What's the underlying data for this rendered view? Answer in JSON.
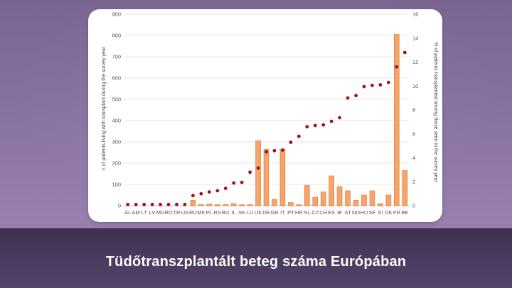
{
  "caption": "Tüdőtranszplantált beteg száma Európában",
  "chart_data": {
    "type": "bar",
    "categories": [
      "AL",
      "AM",
      "LT",
      "LV",
      "MD",
      "RO",
      "TR",
      "UA",
      "RU",
      "MK",
      "PL",
      "RS",
      "BG",
      "IL",
      "SK",
      "LU",
      "UK",
      "DE",
      "GR",
      "IT",
      "PT",
      "HR",
      "NL",
      "CZ",
      "CH",
      "ES",
      "IE",
      "AT",
      "NO",
      "HU",
      "SE",
      "SI",
      "DK",
      "FR",
      "BE"
    ],
    "series": [
      {
        "kind": "bar",
        "axis": "left",
        "values": [
          0,
          0,
          0,
          0,
          0,
          0,
          0,
          0,
          25,
          5,
          8,
          5,
          5,
          10,
          5,
          5,
          305,
          265,
          30,
          265,
          15,
          5,
          95,
          40,
          65,
          140,
          90,
          70,
          25,
          50,
          70,
          10,
          50,
          805,
          165
        ]
      },
      {
        "kind": "marker",
        "axis": "right",
        "values": [
          0.1,
          0.1,
          0.1,
          0.1,
          0.1,
          0.1,
          0.1,
          0.1,
          0.85,
          1.0,
          1.15,
          1.25,
          1.45,
          1.9,
          1.95,
          2.8,
          3.15,
          4.5,
          4.6,
          4.65,
          5.3,
          5.8,
          6.6,
          6.7,
          6.75,
          7.05,
          7.35,
          9.0,
          9.2,
          9.95,
          10.05,
          10.1,
          10.3,
          11.6,
          12.8
        ]
      }
    ],
    "ylabel": "n of patients living with transplant during the survey year",
    "y2label": "% of patients transplanted among those seen in the survey year",
    "ylim": [
      0,
      900
    ],
    "y2lim": [
      0,
      16
    ],
    "yticks": [
      "0",
      "100",
      "200",
      "300",
      "400",
      "500",
      "600",
      "700",
      "800",
      "900"
    ],
    "y2ticks": [
      "0",
      "2",
      "4",
      "6",
      "8",
      "10",
      "12",
      "14",
      "16"
    ],
    "grid": true,
    "colors": {
      "bar_fill": "#f5a46a",
      "bar_stroke": "#e07a3a",
      "marker": "#a4101a",
      "grid": "#dddddd"
    }
  }
}
